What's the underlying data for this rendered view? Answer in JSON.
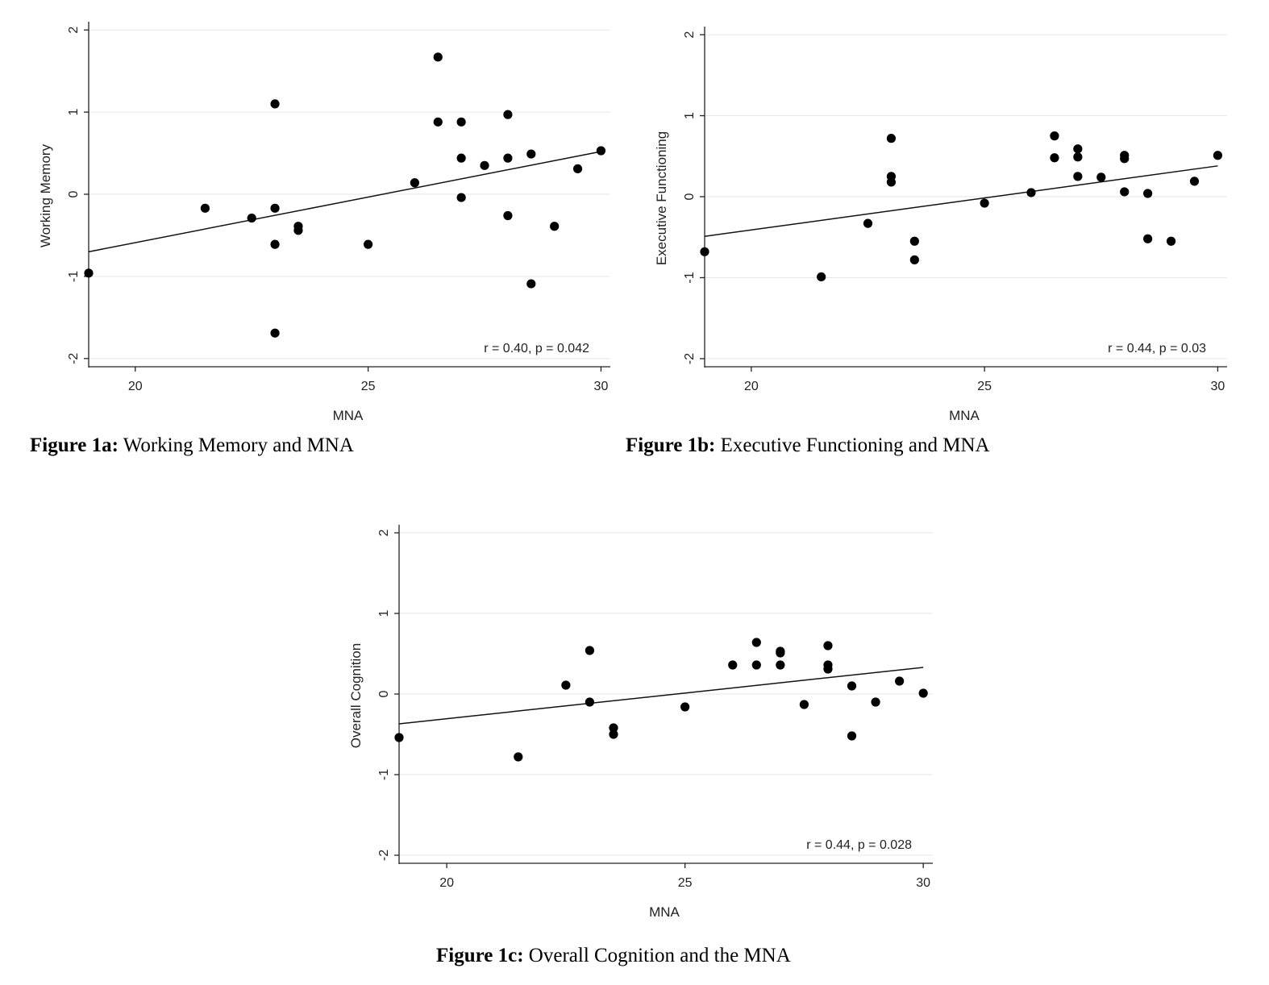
{
  "chart_data": [
    {
      "id": "fig1a",
      "type": "scatter",
      "caption_bold": "Figure 1a:",
      "caption_text": " Working Memory and MNA",
      "xlabel": "MNA",
      "ylabel": "Working Memory",
      "xlim": [
        19,
        30.2
      ],
      "ylim": [
        -2.1,
        2.1
      ],
      "xticks": [
        20,
        25,
        30
      ],
      "yticks": [
        -2,
        -1,
        0,
        1,
        2
      ],
      "grid": "horizontal",
      "annotation": "r = 0.40, p = 0.042",
      "fit_line": {
        "x": [
          19,
          30
        ],
        "y": [
          -0.7,
          0.52
        ]
      },
      "points": {
        "x": [
          19,
          21.5,
          22.5,
          23,
          23,
          23,
          23,
          23.5,
          23.5,
          25,
          26,
          26.5,
          26.5,
          27,
          27,
          27,
          27.5,
          28,
          28,
          28,
          28.5,
          28.5,
          29,
          29.5,
          30
        ],
        "y": [
          -0.96,
          -0.17,
          -0.29,
          1.1,
          -0.17,
          -0.61,
          -1.69,
          -0.39,
          -0.44,
          -0.61,
          0.14,
          1.67,
          0.88,
          0.88,
          0.44,
          -0.04,
          0.35,
          0.97,
          0.44,
          -0.26,
          0.49,
          -1.09,
          -0.39,
          0.31,
          0.53
        ]
      }
    },
    {
      "id": "fig1b",
      "type": "scatter",
      "caption_bold": "Figure 1b:",
      "caption_text": " Executive Functioning and MNA",
      "xlabel": "MNA",
      "ylabel": "Executive Functioning",
      "xlim": [
        19,
        30.2
      ],
      "ylim": [
        -2.1,
        2.1
      ],
      "xticks": [
        20,
        25,
        30
      ],
      "yticks": [
        -2,
        -1,
        0,
        1,
        2
      ],
      "grid": "horizontal",
      "annotation": "r = 0.44, p = 0.03",
      "fit_line": {
        "x": [
          19,
          30
        ],
        "y": [
          -0.49,
          0.38
        ]
      },
      "points": {
        "x": [
          19,
          21.5,
          22.5,
          23,
          23,
          23,
          23.5,
          23.5,
          25,
          26,
          26.5,
          26.5,
          27,
          27,
          27,
          27.5,
          28,
          28,
          28,
          28.5,
          28.5,
          29,
          29.5,
          30
        ],
        "y": [
          -0.68,
          -0.99,
          -0.33,
          0.72,
          0.25,
          0.18,
          -0.55,
          -0.78,
          -0.08,
          0.05,
          0.75,
          0.48,
          0.59,
          0.49,
          0.25,
          0.24,
          0.51,
          0.47,
          0.06,
          0.04,
          -0.52,
          -0.55,
          0.19,
          0.51
        ]
      }
    },
    {
      "id": "fig1c",
      "type": "scatter",
      "caption_bold": "Figure 1c:",
      "caption_text": " Overall Cognition and the MNA",
      "xlabel": "MNA",
      "ylabel": "Overall Cognition",
      "xlim": [
        19,
        30.2
      ],
      "ylim": [
        -2.1,
        2.1
      ],
      "xticks": [
        20,
        25,
        30
      ],
      "yticks": [
        -2,
        -1,
        0,
        1,
        2
      ],
      "grid": "horizontal",
      "annotation": "r = 0.44, p = 0.028",
      "fit_line": {
        "x": [
          19,
          30
        ],
        "y": [
          -0.37,
          0.33
        ]
      },
      "points": {
        "x": [
          19,
          21.5,
          22.5,
          23,
          23,
          23.5,
          23.5,
          25,
          26,
          26.5,
          26.5,
          27,
          27,
          27,
          27.5,
          28,
          28,
          28,
          28.5,
          28.5,
          29,
          29.5,
          30
        ],
        "y": [
          -0.54,
          -0.78,
          0.11,
          0.54,
          -0.1,
          -0.42,
          -0.5,
          -0.16,
          0.36,
          0.64,
          0.36,
          0.53,
          0.51,
          0.36,
          -0.13,
          0.6,
          0.36,
          0.31,
          0.1,
          -0.52,
          -0.1,
          0.16,
          0.01
        ]
      }
    }
  ]
}
